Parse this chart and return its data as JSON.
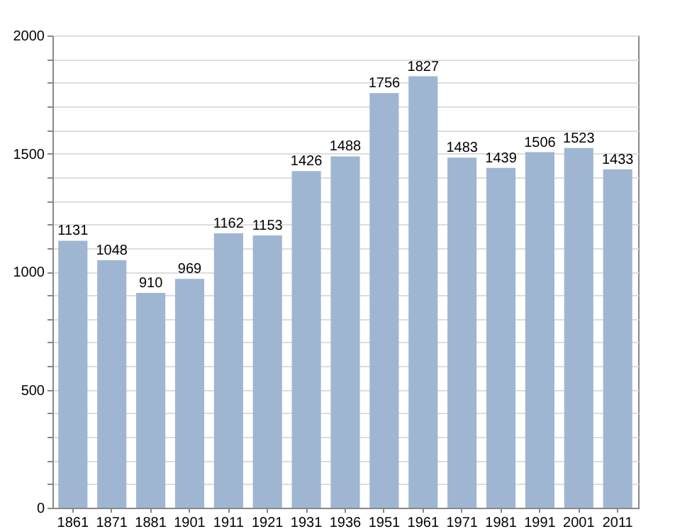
{
  "chart_data": {
    "type": "bar",
    "categories": [
      "1861",
      "1871",
      "1881",
      "1901",
      "1911",
      "1921",
      "1931",
      "1936",
      "1951",
      "1961",
      "1971",
      "1981",
      "1991",
      "2001",
      "2011"
    ],
    "values": [
      1131,
      1048,
      910,
      969,
      1162,
      1153,
      1426,
      1488,
      1756,
      1827,
      1483,
      1439,
      1506,
      1523,
      1433
    ],
    "color": "#9fb6d2",
    "ylim": [
      0,
      2000
    ],
    "yticks": [
      0,
      {
        "value": 100,
        "label": null
      },
      {
        "value": 200,
        "label": null
      },
      {
        "value": 300,
        "label": null
      },
      {
        "value": 400,
        "label": null
      },
      500,
      {
        "value": 600,
        "label": null
      },
      {
        "value": 700,
        "label": null
      },
      {
        "value": 800,
        "label": null
      },
      {
        "value": 900,
        "label": null
      },
      1000,
      {
        "value": 1100,
        "label": null
      },
      {
        "value": 1200,
        "label": null
      },
      {
        "value": 1300,
        "label": null
      },
      {
        "value": 1400,
        "label": null
      },
      1500,
      {
        "value": 1600,
        "label": null
      },
      {
        "value": 1700,
        "label": null
      },
      {
        "value": 1800,
        "label": null
      },
      {
        "value": 1900,
        "label": null
      },
      2000
    ],
    "grid": true,
    "data_labels": true
  }
}
